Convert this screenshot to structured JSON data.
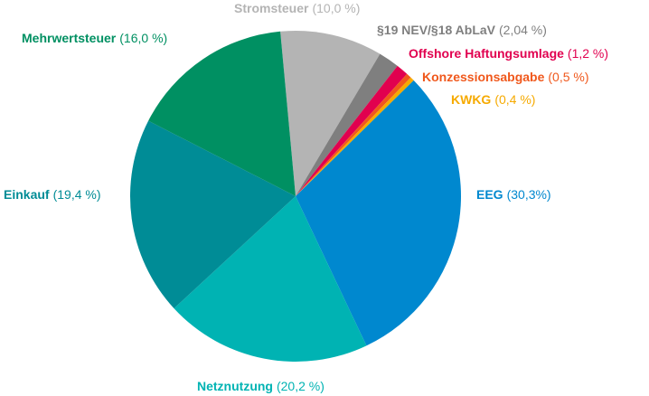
{
  "chart_data": {
    "type": "pie",
    "categories": [
      "Stromsteuer",
      "§19 NEV/§18 AbLaV",
      "Offshore Haftungsumlage",
      "Konzessionsabgabe",
      "KWKG",
      "EEG",
      "Netznutzung",
      "Einkauf",
      "Mehrwertsteuer"
    ],
    "values": [
      10.0,
      2.04,
      1.2,
      0.5,
      0.4,
      30.3,
      20.2,
      19.4,
      16.0
    ],
    "value_labels": [
      "(10,0 %)",
      "(2,04 %)",
      "(1,2 %)",
      "(0,5 %)",
      "(0,4 %)",
      "(30,3%)",
      "(20,2 %)",
      "(19,4 %)",
      "(16,0 %)"
    ],
    "colors": [
      "#b4b4b4",
      "#7f7f7f",
      "#e1004f",
      "#f0581c",
      "#f6aa00",
      "#0088cf",
      "#00b3b3",
      "#008c96",
      "#009062"
    ]
  }
}
